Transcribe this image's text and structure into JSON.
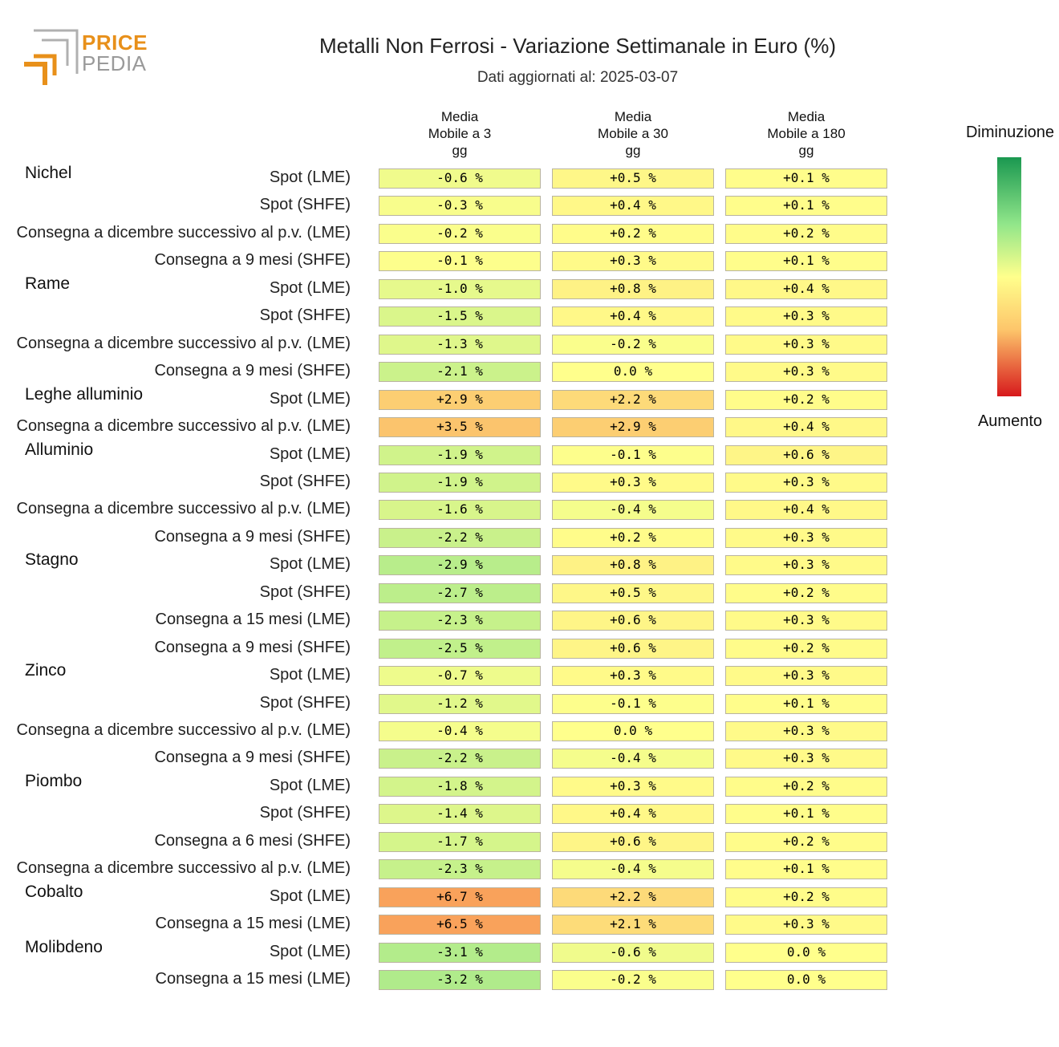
{
  "header": {
    "logo_line1": "PRICE",
    "logo_line2": "PEDIA",
    "title": "Metalli Non Ferrosi - Variazione Settimanale in Euro (%)",
    "subtitle": "Dati aggiornati al: 2025-03-07"
  },
  "legend": {
    "top_label": "Diminuzione",
    "bottom_label": "Aumento",
    "color_low": "#1a9850",
    "color_mid": "#ffff8c",
    "color_high": "#d7191c"
  },
  "chart_data": {
    "type": "heatmap",
    "title": "Metalli Non Ferrosi - Variazione Settimanale in Euro (%)",
    "columns": [
      [
        "Media",
        "Mobile a 3",
        "gg"
      ],
      [
        "Media",
        "Mobile a 30",
        "gg"
      ],
      [
        "Media",
        "Mobile a 180",
        "gg"
      ]
    ],
    "rows": [
      {
        "group": "Nichel",
        "label": "Spot (LME)",
        "values": [
          -0.6,
          0.5,
          0.1
        ],
        "text": [
          "-0.6 %",
          "+0.5 %",
          "+0.1 %"
        ]
      },
      {
        "group": "",
        "label": "Spot (SHFE)",
        "values": [
          -0.3,
          0.4,
          0.1
        ],
        "text": [
          "-0.3 %",
          "+0.4 %",
          "+0.1 %"
        ]
      },
      {
        "group": "",
        "label": "Consegna a dicembre successivo al p.v. (LME)",
        "values": [
          -0.2,
          0.2,
          0.2
        ],
        "text": [
          "-0.2 %",
          "+0.2 %",
          "+0.2 %"
        ]
      },
      {
        "group": "",
        "label": "Consegna a 9 mesi (SHFE)",
        "values": [
          -0.1,
          0.3,
          0.1
        ],
        "text": [
          "-0.1 %",
          "+0.3 %",
          "+0.1 %"
        ]
      },
      {
        "group": "Rame",
        "label": "Spot (LME)",
        "values": [
          -1.0,
          0.8,
          0.4
        ],
        "text": [
          "-1.0 %",
          "+0.8 %",
          "+0.4 %"
        ]
      },
      {
        "group": "",
        "label": "Spot (SHFE)",
        "values": [
          -1.5,
          0.4,
          0.3
        ],
        "text": [
          "-1.5 %",
          "+0.4 %",
          "+0.3 %"
        ]
      },
      {
        "group": "",
        "label": "Consegna a dicembre successivo al p.v. (LME)",
        "values": [
          -1.3,
          -0.2,
          0.3
        ],
        "text": [
          "-1.3 %",
          "-0.2 %",
          "+0.3 %"
        ]
      },
      {
        "group": "",
        "label": "Consegna a 9 mesi (SHFE)",
        "values": [
          -2.1,
          0.0,
          0.3
        ],
        "text": [
          "-2.1 %",
          "0.0 %",
          "+0.3 %"
        ]
      },
      {
        "group": "Leghe alluminio",
        "label": "Spot (LME)",
        "values": [
          2.9,
          2.2,
          0.2
        ],
        "text": [
          "+2.9 %",
          "+2.2 %",
          "+0.2 %"
        ]
      },
      {
        "group": "",
        "label": "Consegna a dicembre successivo al p.v. (LME)",
        "values": [
          3.5,
          2.9,
          0.4
        ],
        "text": [
          "+3.5 %",
          "+2.9 %",
          "+0.4 %"
        ]
      },
      {
        "group": "Alluminio",
        "label": "Spot (LME)",
        "values": [
          -1.9,
          -0.1,
          0.6
        ],
        "text": [
          "-1.9 %",
          "-0.1 %",
          "+0.6 %"
        ]
      },
      {
        "group": "",
        "label": "Spot (SHFE)",
        "values": [
          -1.9,
          0.3,
          0.3
        ],
        "text": [
          "-1.9 %",
          "+0.3 %",
          "+0.3 %"
        ]
      },
      {
        "group": "",
        "label": "Consegna a dicembre successivo al p.v. (LME)",
        "values": [
          -1.6,
          -0.4,
          0.4
        ],
        "text": [
          "-1.6 %",
          "-0.4 %",
          "+0.4 %"
        ]
      },
      {
        "group": "",
        "label": "Consegna a 9 mesi (SHFE)",
        "values": [
          -2.2,
          0.2,
          0.3
        ],
        "text": [
          "-2.2 %",
          "+0.2 %",
          "+0.3 %"
        ]
      },
      {
        "group": "Stagno",
        "label": "Spot (LME)",
        "values": [
          -2.9,
          0.8,
          0.3
        ],
        "text": [
          "-2.9 %",
          "+0.8 %",
          "+0.3 %"
        ]
      },
      {
        "group": "",
        "label": "Spot (SHFE)",
        "values": [
          -2.7,
          0.5,
          0.2
        ],
        "text": [
          "-2.7 %",
          "+0.5 %",
          "+0.2 %"
        ]
      },
      {
        "group": "",
        "label": "Consegna a 15 mesi (LME)",
        "values": [
          -2.3,
          0.6,
          0.3
        ],
        "text": [
          "-2.3 %",
          "+0.6 %",
          "+0.3 %"
        ]
      },
      {
        "group": "",
        "label": "Consegna a 9 mesi (SHFE)",
        "values": [
          -2.5,
          0.6,
          0.2
        ],
        "text": [
          "-2.5 %",
          "+0.6 %",
          "+0.2 %"
        ]
      },
      {
        "group": "Zinco",
        "label": "Spot (LME)",
        "values": [
          -0.7,
          0.3,
          0.3
        ],
        "text": [
          "-0.7 %",
          "+0.3 %",
          "+0.3 %"
        ]
      },
      {
        "group": "",
        "label": "Spot (SHFE)",
        "values": [
          -1.2,
          -0.1,
          0.1
        ],
        "text": [
          "-1.2 %",
          "-0.1 %",
          "+0.1 %"
        ]
      },
      {
        "group": "",
        "label": "Consegna a dicembre successivo al p.v. (LME)",
        "values": [
          -0.4,
          0.0,
          0.3
        ],
        "text": [
          "-0.4 %",
          "0.0 %",
          "+0.3 %"
        ]
      },
      {
        "group": "",
        "label": "Consegna a 9 mesi (SHFE)",
        "values": [
          -2.2,
          -0.4,
          0.3
        ],
        "text": [
          "-2.2 %",
          "-0.4 %",
          "+0.3 %"
        ]
      },
      {
        "group": "Piombo",
        "label": "Spot (LME)",
        "values": [
          -1.8,
          0.3,
          0.2
        ],
        "text": [
          "-1.8 %",
          "+0.3 %",
          "+0.2 %"
        ]
      },
      {
        "group": "",
        "label": "Spot (SHFE)",
        "values": [
          -1.4,
          0.4,
          0.1
        ],
        "text": [
          "-1.4 %",
          "+0.4 %",
          "+0.1 %"
        ]
      },
      {
        "group": "",
        "label": "Consegna a 6 mesi (SHFE)",
        "values": [
          -1.7,
          0.6,
          0.2
        ],
        "text": [
          "-1.7 %",
          "+0.6 %",
          "+0.2 %"
        ]
      },
      {
        "group": "",
        "label": "Consegna a dicembre successivo al p.v. (LME)",
        "values": [
          -2.3,
          -0.4,
          0.1
        ],
        "text": [
          "-2.3 %",
          "-0.4 %",
          "+0.1 %"
        ]
      },
      {
        "group": "Cobalto",
        "label": "Spot (LME)",
        "values": [
          6.7,
          2.2,
          0.2
        ],
        "text": [
          "+6.7 %",
          "+2.2 %",
          "+0.2 %"
        ]
      },
      {
        "group": "",
        "label": "Consegna a 15 mesi (LME)",
        "values": [
          6.5,
          2.1,
          0.3
        ],
        "text": [
          "+6.5 %",
          "+2.1 %",
          "+0.3 %"
        ]
      },
      {
        "group": "Molibdeno",
        "label": "Spot (LME)",
        "values": [
          -3.1,
          -0.6,
          0.0
        ],
        "text": [
          "-3.1 %",
          "-0.6 %",
          "0.0 %"
        ]
      },
      {
        "group": "",
        "label": "Consegna a 15 mesi (LME)",
        "values": [
          -3.2,
          -0.2,
          0.0
        ],
        "text": [
          "-3.2 %",
          "-0.2 %",
          "0.0 %"
        ]
      }
    ]
  }
}
